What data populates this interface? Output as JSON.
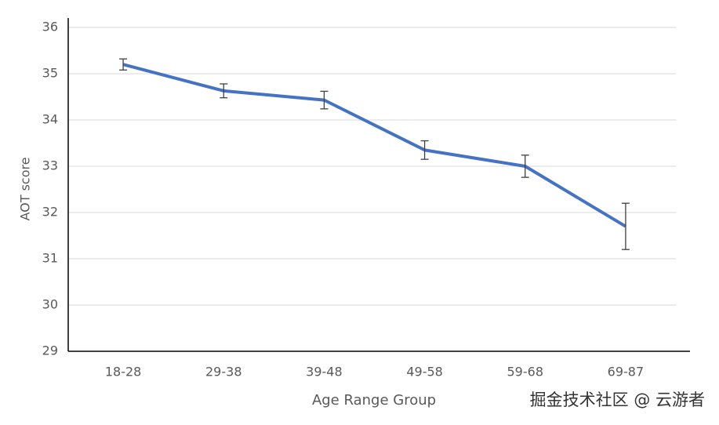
{
  "chart_data": {
    "type": "line",
    "y_label": "AOT score",
    "x_label": "Age Range Group",
    "categories": [
      "18-28",
      "29-38",
      "39-48",
      "49-58",
      "59-68",
      "69-87"
    ],
    "values": [
      35.2,
      34.63,
      34.43,
      33.35,
      33.0,
      31.7
    ],
    "errors": [
      0.12,
      0.15,
      0.19,
      0.2,
      0.24,
      0.5
    ],
    "color": "#4472c4",
    "ylim": [
      29,
      36
    ],
    "yticks": [
      29,
      30,
      31,
      32,
      33,
      34,
      35,
      36
    ],
    "grid": true
  },
  "watermark": "掘金技术社区 @ 云游者"
}
